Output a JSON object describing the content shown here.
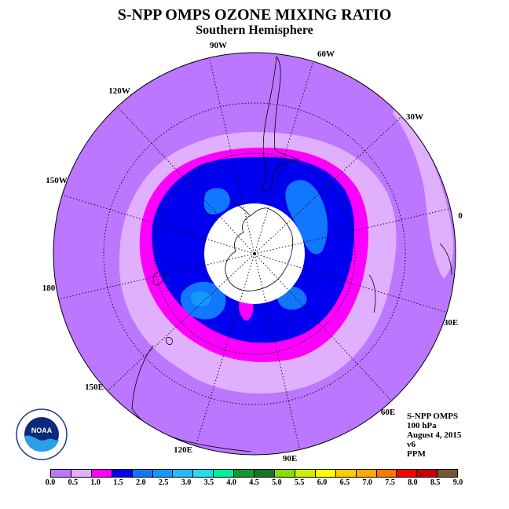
{
  "title": "S-NPP OMPS OZONE MIXING RATIO",
  "subtitle": "Southern Hemisphere",
  "longitude_labels": {
    "lon_90w": "90W",
    "lon_60w": "60W",
    "lon_30w": "30W",
    "lon_0": "0",
    "lon_30e": "30E",
    "lon_60e": "60E",
    "lon_90e": "90E",
    "lon_120e": "120E",
    "lon_150e": "150E",
    "lon_180": "180",
    "lon_150w": "150W",
    "lon_120w": "120W"
  },
  "info": {
    "instrument": "S-NPP OMPS",
    "level": "100 hPa",
    "date": "August 4, 2015",
    "version": "v6",
    "units": "PPM"
  },
  "logo": {
    "text": "NOAA"
  },
  "colorbar": {
    "colors": [
      "#bb77ff",
      "#e0b0ff",
      "#ff00ff",
      "#0000ee",
      "#1177ff",
      "#1199ff",
      "#22bbff",
      "#22ddee",
      "#00ee99",
      "#119933",
      "#117722",
      "#88dd00",
      "#ccee00",
      "#ffff00",
      "#ffcc00",
      "#ffaa00",
      "#ff7700",
      "#ff0000",
      "#cc0000",
      "#775533"
    ],
    "labels": [
      "0.0",
      "0.5",
      "1.0",
      "1.5",
      "2.0",
      "2.5",
      "3.0",
      "3.5",
      "4.0",
      "4.5",
      "5.0",
      "5.5",
      "6.0",
      "6.5",
      "7.0",
      "7.5",
      "8.0",
      "8.5",
      "9.0"
    ]
  }
}
